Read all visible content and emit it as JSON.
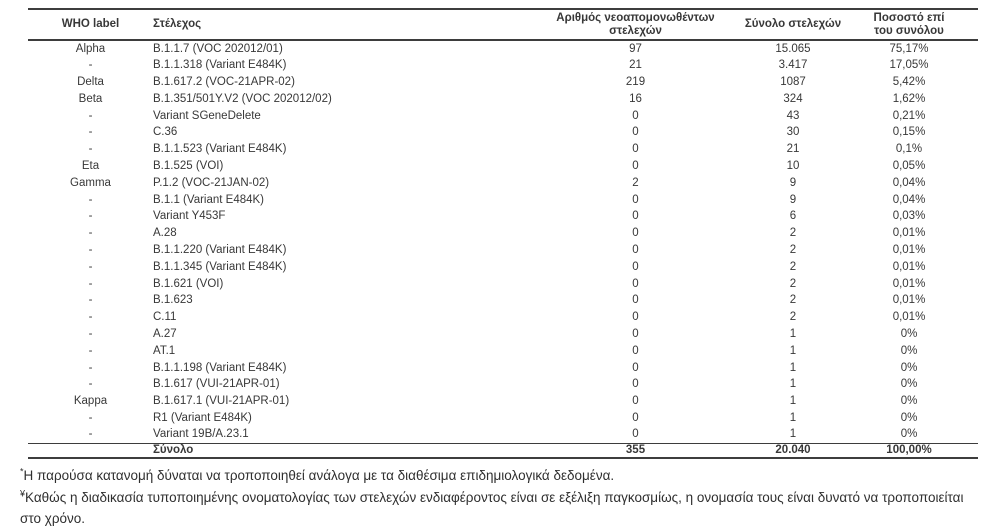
{
  "table": {
    "columns": [
      {
        "label": "WHO label"
      },
      {
        "label": "Στέλεχος"
      },
      {
        "label": "Αριθμός νεοαπομονωθέντων στελεχών"
      },
      {
        "label": "Σύνολο στελεχών"
      },
      {
        "label": "Ποσοστό επί του συνόλου"
      }
    ],
    "rows": [
      [
        "Alpha",
        "B.1.1.7 (VOC 202012/01)",
        "97",
        "15.065",
        "75,17%"
      ],
      [
        "-",
        "B.1.1.318 (Variant E484K)",
        "21",
        "3.417",
        "17,05%"
      ],
      [
        "Delta",
        "B.1.617.2 (VOC-21APR-02)",
        "219",
        "1087",
        "5,42%"
      ],
      [
        "Beta",
        "B.1.351/501Y.V2 (VOC 202012/02)",
        "16",
        "324",
        "1,62%"
      ],
      [
        "-",
        "Variant SGeneDelete",
        "0",
        "43",
        "0,21%"
      ],
      [
        "-",
        "C.36",
        "0",
        "30",
        "0,15%"
      ],
      [
        "-",
        "B.1.1.523 (Variant E484K)",
        "0",
        "21",
        "0,1%"
      ],
      [
        "Eta",
        "B.1.525 (VOI)",
        "0",
        "10",
        "0,05%"
      ],
      [
        "Gamma",
        "P.1.2 (VOC-21JAN-02)",
        "2",
        "9",
        "0,04%"
      ],
      [
        "-",
        "B.1.1 (Variant E484K)",
        "0",
        "9",
        "0,04%"
      ],
      [
        "-",
        "Variant Y453F",
        "0",
        "6",
        "0,03%"
      ],
      [
        "-",
        "A.28",
        "0",
        "2",
        "0,01%"
      ],
      [
        "-",
        "B.1.1.220 (Variant E484K)",
        "0",
        "2",
        "0,01%"
      ],
      [
        "-",
        "B.1.1.345 (Variant E484K)",
        "0",
        "2",
        "0,01%"
      ],
      [
        "-",
        "B.1.621 (VOI)",
        "0",
        "2",
        "0,01%"
      ],
      [
        "-",
        "B.1.623",
        "0",
        "2",
        "0,01%"
      ],
      [
        "-",
        "C.11",
        "0",
        "2",
        "0,01%"
      ],
      [
        "-",
        "A.27",
        "0",
        "1",
        "0%"
      ],
      [
        "-",
        "AT.1",
        "0",
        "1",
        "0%"
      ],
      [
        "-",
        "B.1.1.198 (Variant E484K)",
        "0",
        "1",
        "0%"
      ],
      [
        "-",
        "B.1.617 (VUI-21APR-01)",
        "0",
        "1",
        "0%"
      ],
      [
        "Kappa",
        "B.1.617.1 (VUI-21APR-01)",
        "0",
        "1",
        "0%"
      ],
      [
        "-",
        "R1 (Variant E484K)",
        "0",
        "1",
        "0%"
      ],
      [
        "-",
        "Variant 19B/A.23.1",
        "0",
        "1",
        "0%"
      ]
    ],
    "total_row": {
      "who_label": "",
      "label": "Σύνολο",
      "new_isolates": "355",
      "total": "20.040",
      "percent": "100,00%"
    }
  },
  "footnotes": [
    {
      "marker": "*",
      "text": "Η παρούσα κατανομή δύναται να τροποποιηθεί ανάλογα με τα διαθέσιμα επιδημιολογικά δεδομένα."
    },
    {
      "marker": "¥",
      "text": "Καθώς η διαδικασία τυποποιημένης ονοματολογίας των στελεχών ενδιαφέροντος είναι σε εξέλιξη παγκοσμίως, η ονομασία τους είναι δυνατό να τροποποιείται στο χρόνο."
    }
  ],
  "colors": {
    "text": "#383838",
    "line": "#3d3d3d",
    "background": "#ffffff"
  }
}
